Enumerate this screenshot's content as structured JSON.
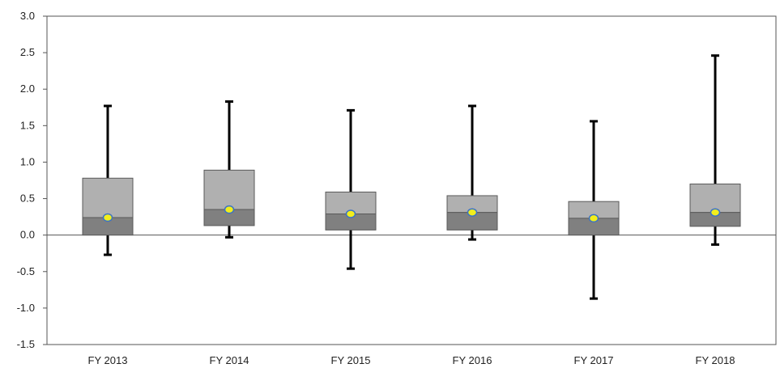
{
  "chart_data": {
    "type": "boxplot",
    "title": "",
    "xlabel": "",
    "ylabel": "",
    "ylim": [
      -1.5,
      3.0
    ],
    "yticks": [
      "3.0",
      "2.5",
      "2.0",
      "1.5",
      "1.0",
      "0.5",
      "0.0",
      "-0.5",
      "-1.0",
      "-1.5"
    ],
    "ytick_values": [
      3.0,
      2.5,
      2.0,
      1.5,
      1.0,
      0.5,
      0.0,
      -0.5,
      -1.0,
      -1.5
    ],
    "grid": false,
    "legend": "none",
    "categories": [
      "FY 2013",
      "FY 2014",
      "FY 2015",
      "FY 2016",
      "FY 2017",
      "FY 2018"
    ],
    "boxes": [
      {
        "whisker_low": -0.27,
        "q1": 0.0,
        "median": 0.24,
        "q3": 0.78,
        "whisker_high": 1.77,
        "mean": 0.24
      },
      {
        "whisker_low": -0.03,
        "q1": 0.13,
        "median": 0.35,
        "q3": 0.89,
        "whisker_high": 1.83,
        "mean": 0.35
      },
      {
        "whisker_low": -0.46,
        "q1": 0.07,
        "median": 0.29,
        "q3": 0.59,
        "whisker_high": 1.71,
        "mean": 0.29
      },
      {
        "whisker_low": -0.06,
        "q1": 0.07,
        "median": 0.31,
        "q3": 0.54,
        "whisker_high": 1.77,
        "mean": 0.31
      },
      {
        "whisker_low": -0.87,
        "q1": 0.0,
        "median": 0.23,
        "q3": 0.46,
        "whisker_high": 1.56,
        "mean": 0.23
      },
      {
        "whisker_low": -0.13,
        "q1": 0.12,
        "median": 0.31,
        "q3": 0.7,
        "whisker_high": 2.46,
        "mean": 0.31
      }
    ],
    "colors": {
      "upper_box": "#b0b0b0",
      "lower_box": "#808080",
      "box_edge": "#5a5a5a",
      "whisker": "#000000",
      "mean_marker": "#f2ee1c",
      "mean_marker_edge": "#3a73c6",
      "axis": "#555555"
    }
  }
}
